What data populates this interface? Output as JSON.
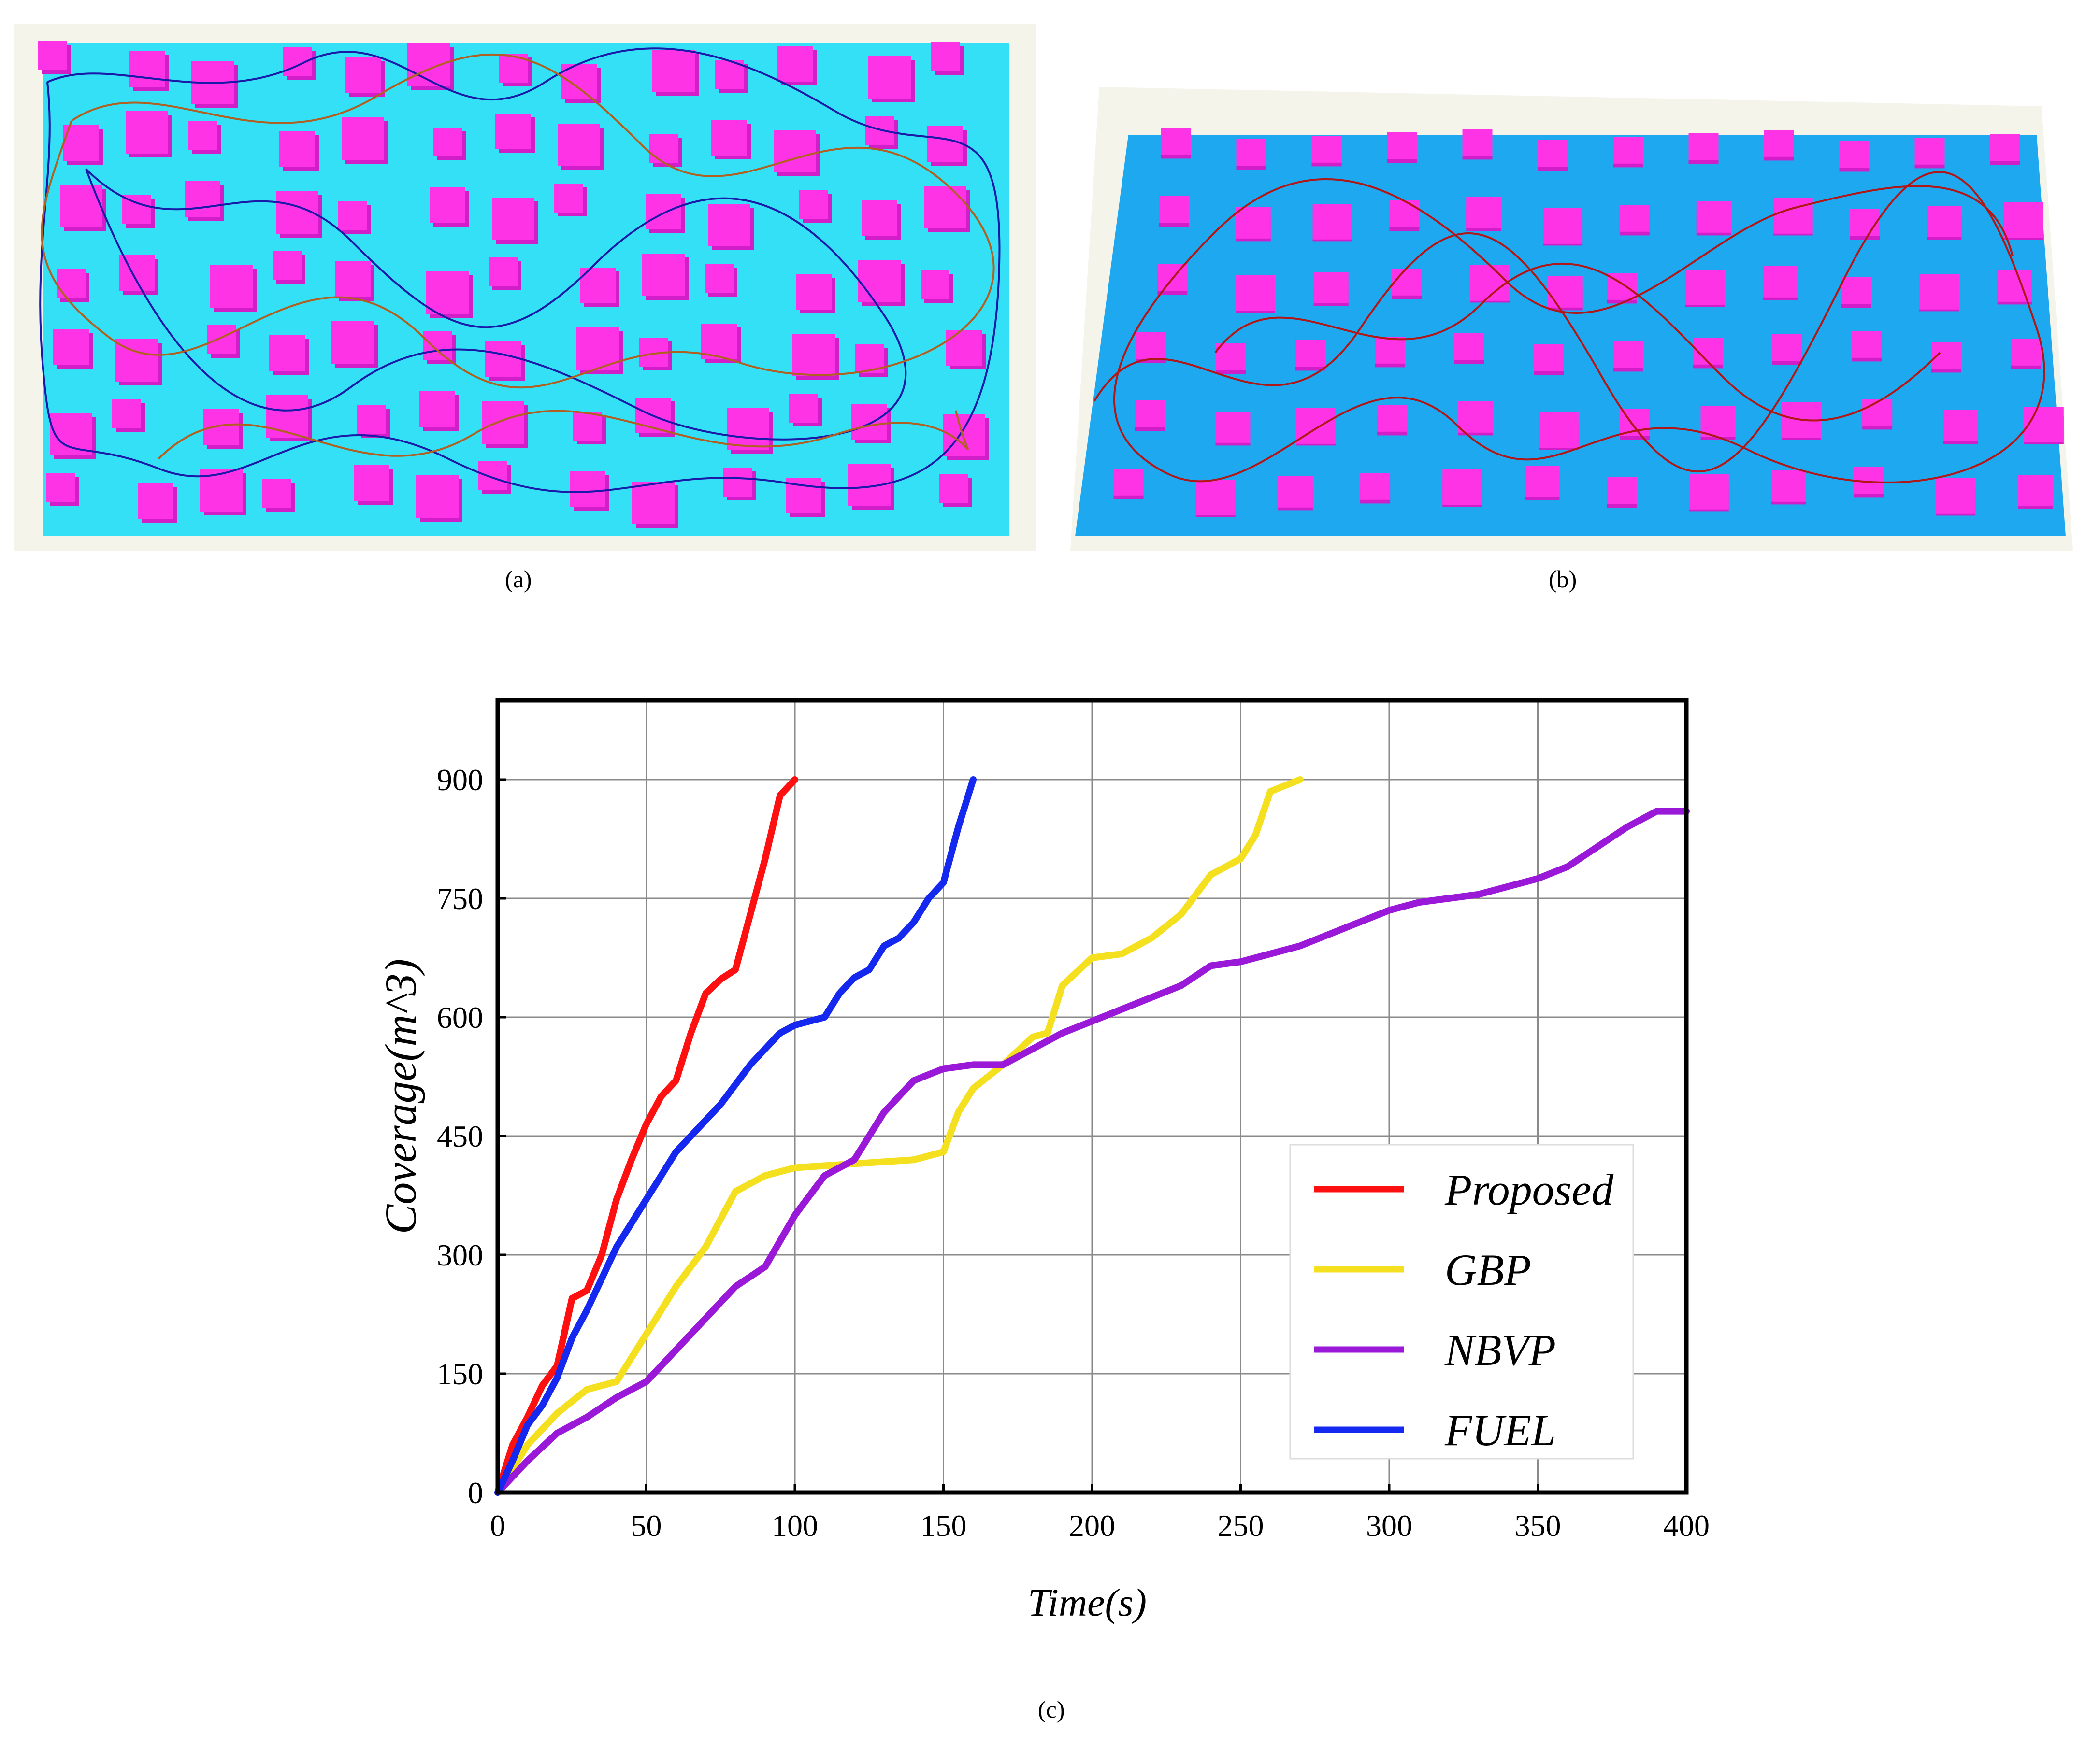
{
  "panels": {
    "a": {
      "label": "(a)"
    },
    "b": {
      "label": "(b)"
    },
    "c": {
      "label": "(c)"
    }
  },
  "colors": {
    "floor_a": "#33e0f5",
    "floor_b": "#1ea8f0",
    "obstacle": "#ff33e6",
    "obstacle_shade": "#d21ec8",
    "trajectory_blue": "#1a1aa8",
    "trajectory_orange": "#b06020",
    "trajectory_red": "#b01818"
  },
  "chart_data": {
    "type": "line",
    "title": "",
    "xlabel": "Time(s)",
    "ylabel": "Coverage(m^3)",
    "xlim": [
      0,
      400
    ],
    "ylim": [
      0,
      1000
    ],
    "xticks": [
      0,
      50,
      100,
      150,
      200,
      250,
      300,
      350,
      400
    ],
    "yticks": [
      0,
      150,
      300,
      450,
      600,
      750,
      900
    ],
    "grid": true,
    "legend_position": "bottom-right",
    "series": [
      {
        "name": "Proposed",
        "color": "#ff1010",
        "x": [
          0,
          5,
          10,
          15,
          20,
          25,
          30,
          35,
          40,
          45,
          50,
          55,
          60,
          65,
          70,
          75,
          80,
          85,
          90,
          95,
          100
        ],
        "y": [
          0,
          60,
          95,
          135,
          160,
          245,
          255,
          300,
          370,
          420,
          465,
          500,
          520,
          580,
          630,
          648,
          660,
          730,
          800,
          880,
          900
        ]
      },
      {
        "name": "GBP",
        "color": "#f5e020",
        "x": [
          0,
          10,
          20,
          30,
          40,
          50,
          60,
          70,
          80,
          90,
          100,
          120,
          140,
          150,
          155,
          160,
          170,
          180,
          185,
          190,
          200,
          210,
          220,
          230,
          240,
          250,
          255,
          260,
          270
        ],
        "y": [
          0,
          60,
          100,
          130,
          140,
          200,
          260,
          310,
          380,
          400,
          410,
          415,
          420,
          430,
          480,
          510,
          540,
          575,
          580,
          640,
          675,
          680,
          700,
          730,
          780,
          800,
          830,
          885,
          900
        ]
      },
      {
        "name": "NBVP",
        "color": "#9a18d8",
        "x": [
          0,
          10,
          20,
          30,
          40,
          50,
          60,
          70,
          80,
          90,
          100,
          110,
          120,
          130,
          140,
          150,
          160,
          170,
          180,
          190,
          200,
          210,
          220,
          230,
          240,
          250,
          260,
          270,
          280,
          290,
          300,
          310,
          320,
          330,
          340,
          350,
          360,
          370,
          380,
          390,
          400
        ],
        "y": [
          0,
          40,
          75,
          95,
          120,
          140,
          180,
          220,
          260,
          285,
          350,
          400,
          420,
          480,
          520,
          535,
          540,
          540,
          560,
          580,
          595,
          610,
          625,
          640,
          665,
          670,
          680,
          690,
          705,
          720,
          735,
          745,
          750,
          755,
          765,
          775,
          790,
          815,
          840,
          860,
          860
        ]
      },
      {
        "name": "FUEL",
        "color": "#1428f0",
        "x": [
          0,
          5,
          10,
          15,
          20,
          25,
          30,
          35,
          40,
          45,
          50,
          55,
          60,
          65,
          70,
          75,
          80,
          85,
          90,
          95,
          100,
          110,
          115,
          120,
          125,
          130,
          135,
          140,
          145,
          150,
          155,
          160
        ],
        "y": [
          0,
          40,
          85,
          110,
          145,
          195,
          230,
          270,
          310,
          340,
          370,
          400,
          430,
          450,
          470,
          490,
          515,
          540,
          560,
          580,
          590,
          600,
          630,
          650,
          660,
          690,
          700,
          720,
          750,
          770,
          840,
          900
        ]
      }
    ]
  }
}
